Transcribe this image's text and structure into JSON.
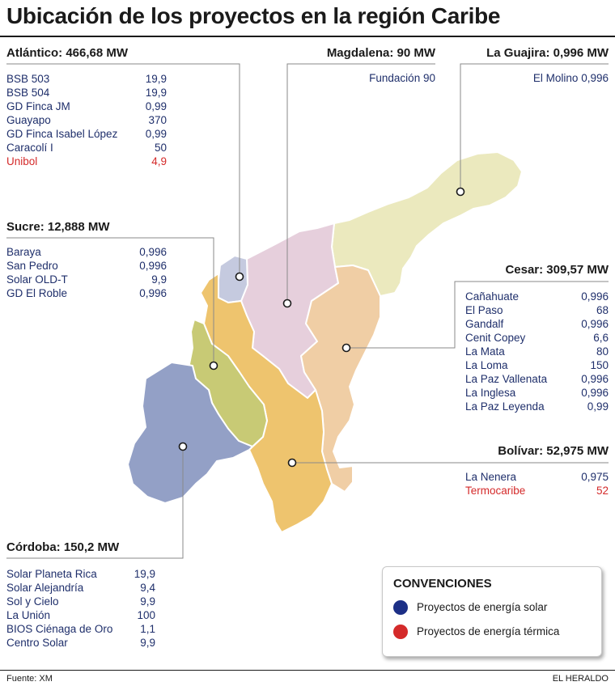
{
  "title": "Ubicación de los proyectos en la región Caribe",
  "colors": {
    "solar": "#1c2f86",
    "thermal": "#d42a2a",
    "atlantico": "#c5cadf",
    "magdalena": "#e6cfdc",
    "laguajira": "#ebe9be",
    "cesar": "#f0cea5",
    "sucre": "#c8ca75",
    "bolivar": "#eec46e",
    "cordoba": "#93a0c6"
  },
  "departments": {
    "atlantico": {
      "name": "Atlántico: 466,68 MW",
      "projects": [
        {
          "name": "BSB 503",
          "value": "19,9",
          "type": "solar"
        },
        {
          "name": "BSB 504",
          "value": "19,9",
          "type": "solar"
        },
        {
          "name": "GD Finca JM",
          "value": "0,99",
          "type": "solar"
        },
        {
          "name": "Guayapo",
          "value": "370",
          "type": "solar"
        },
        {
          "name": "GD Finca Isabel López",
          "value": "0,99",
          "type": "solar"
        },
        {
          "name": "Caracolí I",
          "value": "50",
          "type": "solar"
        },
        {
          "name": "Unibol",
          "value": "4,9",
          "type": "thermal"
        }
      ]
    },
    "magdalena": {
      "name": "Magdalena: 90 MW",
      "projects": [
        {
          "name": "Fundación",
          "value": "90",
          "type": "solar"
        }
      ]
    },
    "laguajira": {
      "name": "La Guajira: 0,996 MW",
      "projects": [
        {
          "name": "El Molino",
          "value": "0,996",
          "type": "solar"
        }
      ]
    },
    "sucre": {
      "name": "Sucre: 12,888 MW",
      "projects": [
        {
          "name": "Baraya",
          "value": "0,996",
          "type": "solar"
        },
        {
          "name": "San Pedro",
          "value": "0,996",
          "type": "solar"
        },
        {
          "name": "Solar OLD-T",
          "value": "9,9",
          "type": "solar"
        },
        {
          "name": "GD El Roble",
          "value": "0,996",
          "type": "solar"
        }
      ]
    },
    "cesar": {
      "name": "Cesar: 309,57 MW",
      "projects": [
        {
          "name": "Cañahuate",
          "value": "0,996",
          "type": "solar"
        },
        {
          "name": "El Paso",
          "value": "68",
          "type": "solar"
        },
        {
          "name": "Gandalf",
          "value": "0,996",
          "type": "solar"
        },
        {
          "name": "Cenit Copey",
          "value": "6,6",
          "type": "solar"
        },
        {
          "name": "La Mata",
          "value": "80",
          "type": "solar"
        },
        {
          "name": "La Loma",
          "value": "150",
          "type": "solar"
        },
        {
          "name": "La Paz Vallenata",
          "value": "0,996",
          "type": "solar"
        },
        {
          "name": "La Inglesa",
          "value": "0,996",
          "type": "solar"
        },
        {
          "name": "La Paz Leyenda",
          "value": "0,99",
          "type": "solar"
        }
      ]
    },
    "bolivar": {
      "name": "Bolívar: 52,975 MW",
      "projects": [
        {
          "name": "La Nenera",
          "value": "0,975",
          "type": "solar"
        },
        {
          "name": "Termocaribe",
          "value": "52",
          "type": "thermal"
        }
      ]
    },
    "cordoba": {
      "name": "Córdoba: 150,2 MW",
      "projects": [
        {
          "name": "Solar Planeta Rica",
          "value": "19,9",
          "type": "solar"
        },
        {
          "name": "Solar Alejandría",
          "value": "9,4",
          "type": "solar"
        },
        {
          "name": "Sol y Cielo",
          "value": "9,9",
          "type": "solar"
        },
        {
          "name": "La Unión",
          "value": "100",
          "type": "solar"
        },
        {
          "name": "BIOS Ciénaga de Oro",
          "value": "1,1",
          "type": "solar"
        },
        {
          "name": "Centro Solar",
          "value": "9,9",
          "type": "solar"
        }
      ]
    }
  },
  "legend": {
    "title": "CONVENCIONES",
    "solar": "Proyectos de energía solar",
    "thermal": "Proyectos de energía térmica"
  },
  "footer": {
    "source": "Fuente: XM",
    "brand": "EL HERALDO"
  }
}
